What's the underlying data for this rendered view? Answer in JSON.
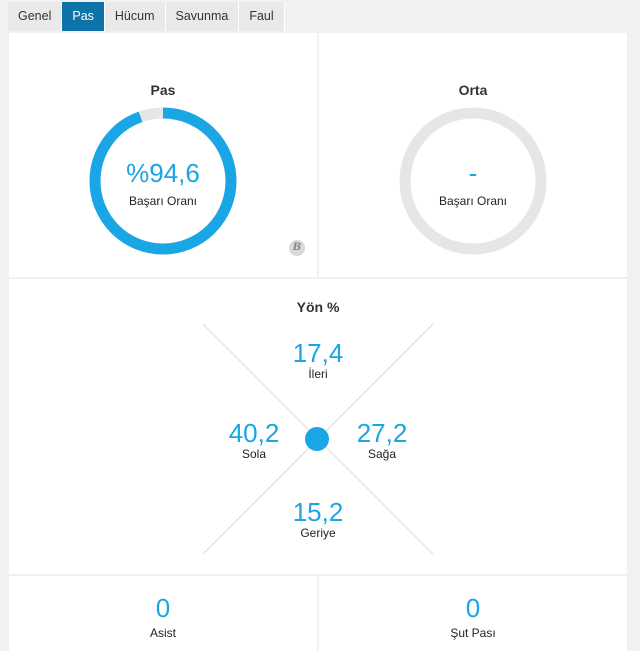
{
  "tabs": [
    {
      "label": "Genel",
      "active": false
    },
    {
      "label": "Pas",
      "active": true
    },
    {
      "label": "Hücum",
      "active": false
    },
    {
      "label": "Savunma",
      "active": false
    },
    {
      "label": "Faul",
      "active": false
    }
  ],
  "pas": {
    "title": "Pas",
    "value": "%94,6",
    "label": "Başarı Oranı",
    "progress": 0.946,
    "badge": "B"
  },
  "orta": {
    "title": "Orta",
    "value": "-",
    "label": "Başarı Oranı",
    "progress": 0
  },
  "yon": {
    "title": "Yön %",
    "ileri": {
      "value": "17,4",
      "label": "İleri"
    },
    "sola": {
      "value": "40,2",
      "label": "Sola"
    },
    "saga": {
      "value": "27,2",
      "label": "Sağa"
    },
    "geriye": {
      "value": "15,2",
      "label": "Geriye"
    }
  },
  "asist": {
    "value": "0",
    "label": "Asist"
  },
  "sut_pasi": {
    "value": "0",
    "label": "Şut Pası"
  },
  "colors": {
    "accent": "#1aa6e4",
    "active_tab": "#0d73a8",
    "ring_track": "#e6e6e6"
  }
}
